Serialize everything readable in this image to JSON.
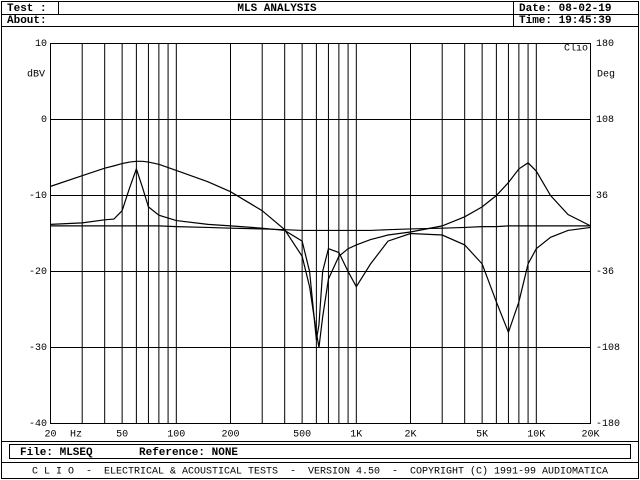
{
  "header": {
    "test_label": "Test :",
    "about_label": "About:",
    "title": "MLS ANALYSIS",
    "date": "Date: 08-02-19",
    "time": "Time: 19:45:39"
  },
  "chart_data": {
    "type": "line",
    "watermark": "Clio",
    "ylabel": "dBV",
    "y2label": "Deg",
    "xlabel": "Hz",
    "xscale": "log",
    "grid": true,
    "color": "#000000",
    "xlim": [
      20,
      20000
    ],
    "xticks": [
      20,
      50,
      100,
      200,
      500,
      {
        "value": 1000,
        "label": "1K"
      },
      {
        "value": 2000,
        "label": "2K"
      },
      {
        "value": 5000,
        "label": "5K"
      },
      {
        "value": 10000,
        "label": "10K"
      },
      {
        "value": 20000,
        "label": "20K"
      }
    ],
    "xminorticks": [
      30,
      40,
      60,
      70,
      80,
      90,
      300,
      400,
      600,
      700,
      800,
      900,
      3000,
      4000,
      6000,
      7000,
      8000,
      9000
    ],
    "ylim": [
      -40,
      10
    ],
    "yticks": [
      10,
      0,
      -10,
      -20,
      -30,
      -40
    ],
    "y2lim": [
      -180,
      180
    ],
    "y2ticks": [
      180,
      108,
      36,
      -36,
      -108,
      -180
    ],
    "x": [
      20,
      30,
      40,
      45,
      50,
      55,
      60,
      65,
      70,
      80,
      100,
      150,
      200,
      300,
      400,
      500,
      550,
      600,
      620,
      650,
      700,
      800,
      900,
      1000,
      1200,
      1500,
      2000,
      3000,
      4000,
      5000,
      6000,
      7000,
      8000,
      9000,
      10000,
      12000,
      15000,
      20000
    ],
    "series": [
      {
        "color": "#000000",
        "values": [
          -8.8,
          -7.4,
          -6.4,
          -6.1,
          -5.8,
          -5.6,
          -5.5,
          -5.5,
          -5.6,
          -5.9,
          -6.7,
          -8.2,
          -9.5,
          -12,
          -14.5,
          -18,
          -22,
          -28,
          -30,
          -26,
          -21,
          -18,
          -17,
          -16.5,
          -15.8,
          -15.2,
          -14.8,
          -14,
          -12.8,
          -11.5,
          -10,
          -8.3,
          -6.5,
          -5.7,
          -6.8,
          -10,
          -12.5,
          -14
        ]
      },
      {
        "color": "#000000",
        "values": [
          -13.8,
          -13.6,
          -13.2,
          -13.1,
          -12,
          -9,
          -6.5,
          -9,
          -11.5,
          -12.6,
          -13.3,
          -13.8,
          -14,
          -14.3,
          -14.6,
          -16,
          -20,
          -29,
          -27,
          -20,
          -17,
          -17.5,
          -20,
          -22,
          -19,
          -16,
          -15,
          -15.2,
          -16.5,
          -19,
          -24,
          -28,
          -24,
          -19,
          -17,
          -15.5,
          -14.6,
          -14.2
        ]
      },
      {
        "color": "#000000",
        "values": [
          -14,
          -14,
          -14,
          -14,
          -14,
          -14,
          -14,
          -14,
          -14,
          -14,
          -14.1,
          -14.2,
          -14.3,
          -14.4,
          -14.5,
          -14.6,
          -14.6,
          -14.6,
          -14.6,
          -14.6,
          -14.6,
          -14.6,
          -14.6,
          -14.6,
          -14.6,
          -14.5,
          -14.4,
          -14.3,
          -14.2,
          -14.1,
          -14.1,
          -14,
          -14,
          -14,
          -14,
          -14,
          -14,
          -14
        ]
      }
    ]
  },
  "footer": {
    "file": "File: MLSEQ",
    "reference": "Reference: NONE",
    "banner": "C L I O  -  ELECTRICAL & ACOUSTICAL TESTS  -  VERSION 4.50  -  COPYRIGHT (C) 1991-99 AUDIOMATICA"
  }
}
